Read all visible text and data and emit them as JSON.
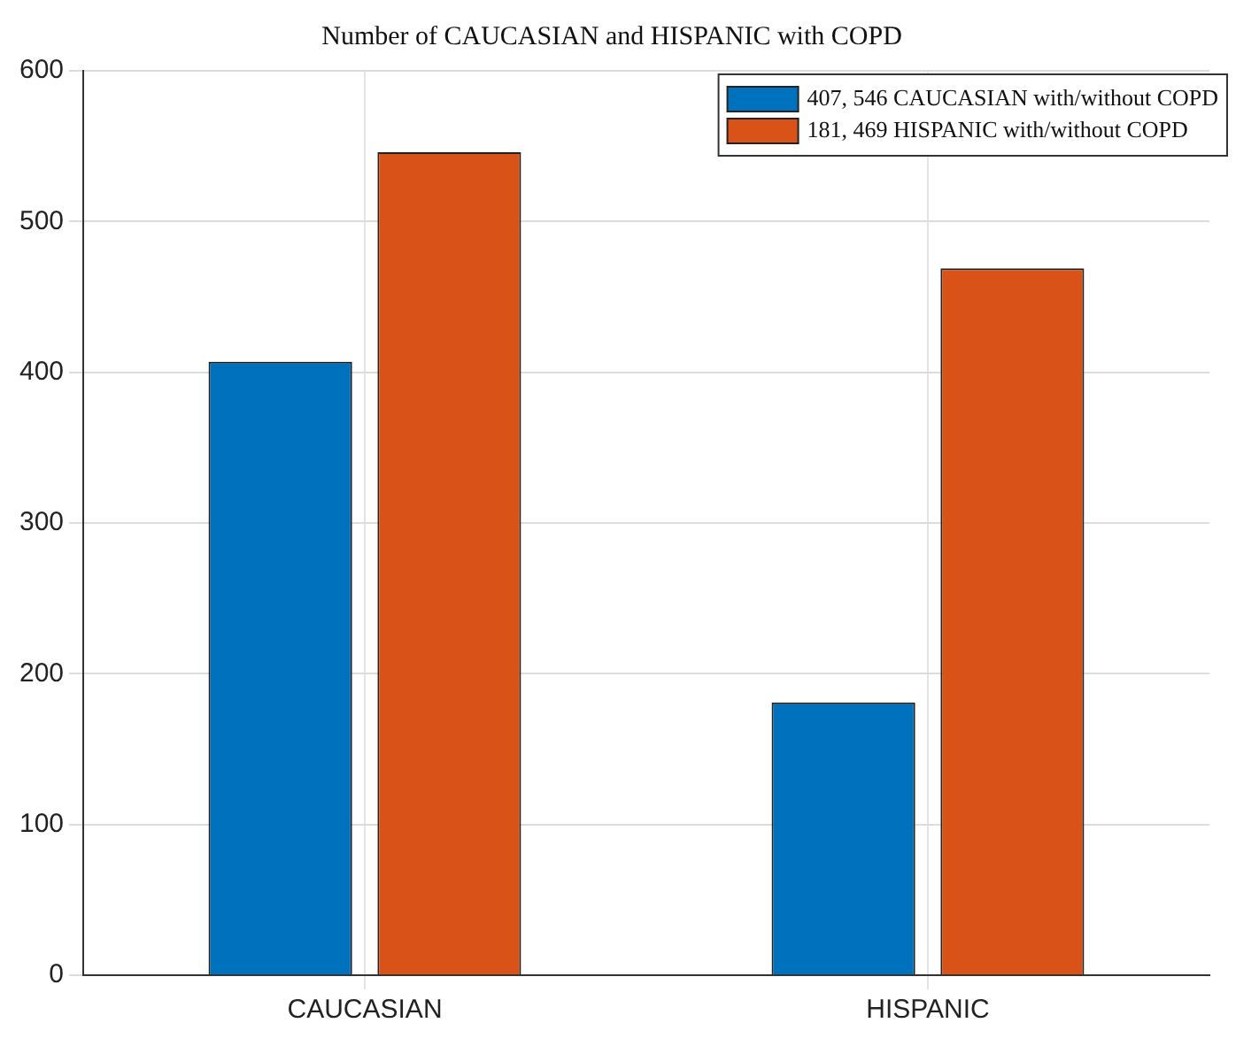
{
  "chart_data": {
    "type": "bar",
    "title": "Number of CAUCASIAN and HISPANIC with COPD",
    "categories": [
      "CAUCASIAN",
      "HISPANIC"
    ],
    "series": [
      {
        "name": "407, 546 CAUCASIAN with/without COPD",
        "color": "#0072bd",
        "values": [
          407,
          181
        ]
      },
      {
        "name": "181, 469 HISPANIC with/without COPD",
        "color": "#d95319",
        "values": [
          546,
          469
        ]
      }
    ],
    "ylim": [
      0,
      600
    ],
    "yticks": [
      0,
      100,
      200,
      300,
      400,
      500,
      600
    ],
    "grid": true,
    "legend": "top right"
  }
}
